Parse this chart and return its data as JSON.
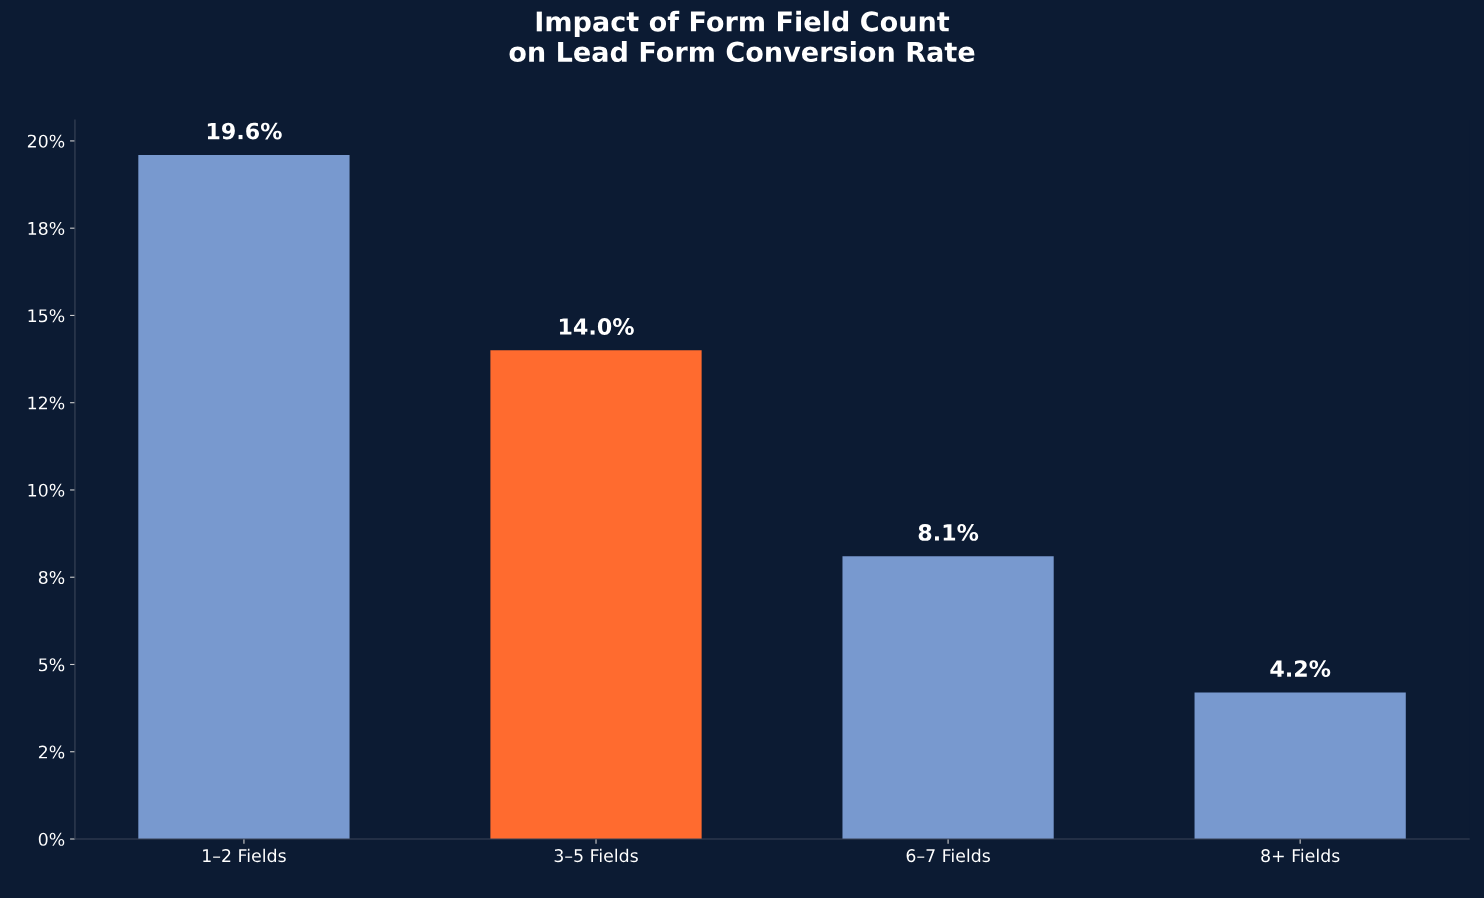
{
  "chart_data": {
    "type": "bar",
    "title": "Impact of Form Field Count\non Lead Form Conversion Rate",
    "categories": [
      "1–2 Fields",
      "3–5 Fields",
      "6–7 Fields",
      "8+ Fields"
    ],
    "values": [
      19.6,
      14.0,
      8.1,
      4.2
    ],
    "colors": [
      "#7899cf",
      "#ff6b2f",
      "#7899cf",
      "#7899cf"
    ],
    "value_labels": [
      "19.6%",
      "14.0%",
      "8.1%",
      "4.2%"
    ],
    "ylim": [
      0,
      20.6
    ],
    "yticks": [
      {
        "value": 0,
        "label": "0%"
      },
      {
        "value": 2.5,
        "label": "2%"
      },
      {
        "value": 5,
        "label": "5%"
      },
      {
        "value": 7.5,
        "label": "8%"
      },
      {
        "value": 10,
        "label": "10%"
      },
      {
        "value": 12.5,
        "label": "12%"
      },
      {
        "value": 15,
        "label": "15%"
      },
      {
        "value": 17.5,
        "label": "18%"
      },
      {
        "value": 20,
        "label": "20%"
      }
    ],
    "grid": false,
    "legend": false
  }
}
